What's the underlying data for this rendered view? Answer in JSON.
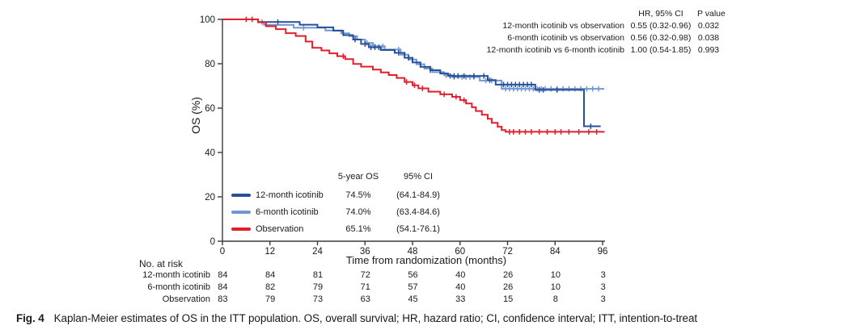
{
  "colors": {
    "dark_blue": "#27509b",
    "light_blue": "#7197d1",
    "red": "#e31e2d",
    "axis": "#3c3c3c",
    "text": "#1a1a1a"
  },
  "hr_table": {
    "col_headers": [
      "HR, 95% CI",
      "P value"
    ],
    "rows": [
      {
        "label": "12-month icotinib vs observation",
        "hr": "0.55 (0.32-0.96)",
        "p": "0.032"
      },
      {
        "label": "6-month icotinib vs observation",
        "hr": "0.56 (0.32-0.98)",
        "p": "0.038"
      },
      {
        "label": "12-month icotinib vs 6-month icotinib",
        "hr": "1.00 (0.54-1.85)",
        "p": "0.993"
      }
    ]
  },
  "legend_table": {
    "col_headers": [
      "5-year OS",
      "95% CI"
    ],
    "rows": [
      {
        "label": "12-month icotinib",
        "os": "74.5%",
        "ci": "(64.1-84.9)",
        "color": "#27509b"
      },
      {
        "label": "6-month icotinib",
        "os": "74.0%",
        "ci": "(63.4-84.6)",
        "color": "#7197d1"
      },
      {
        "label": "Observation",
        "os": "65.1%",
        "ci": "(54.1-76.1)",
        "color": "#e31e2d"
      }
    ]
  },
  "risk_table": {
    "title": "No. at risk",
    "rows": [
      {
        "label": "12-month icotinib",
        "counts": [
          84,
          84,
          81,
          72,
          56,
          40,
          26,
          10,
          3
        ]
      },
      {
        "label": "6-month icotinib",
        "counts": [
          84,
          82,
          79,
          71,
          57,
          40,
          26,
          10,
          3
        ]
      },
      {
        "label": "Observation",
        "counts": [
          83,
          79,
          73,
          63,
          45,
          33,
          15,
          8,
          3
        ]
      }
    ]
  },
  "caption": {
    "fig_label": "Fig. 4",
    "text": "Kaplan-Meier estimates of OS in the ITT population. OS, overall survival; HR, hazard ratio; CI, confidence interval; ITT, intention-to-treat"
  },
  "chart_data": {
    "type": "line",
    "subtype": "kaplan-meier-step",
    "title": "",
    "xlabel": "Time from randomization (months)",
    "ylabel": "OS (%)",
    "xlim": [
      0,
      96
    ],
    "ylim": [
      0,
      100
    ],
    "xticks": [
      0,
      12,
      24,
      36,
      48,
      60,
      72,
      84,
      96
    ],
    "yticks": [
      0,
      20,
      40,
      60,
      80,
      100
    ],
    "grid": false,
    "legend_position": "inside-lower-left",
    "series": [
      {
        "id": "12-month-icotinib",
        "name": "12-month icotinib",
        "color": "#27509b",
        "five_year_os_pct": 74.5,
        "points": [
          [
            0,
            100
          ],
          [
            9,
            100
          ],
          [
            9,
            98.8
          ],
          [
            19.5,
            98.8
          ],
          [
            19.5,
            97.6
          ],
          [
            24,
            97.6
          ],
          [
            24,
            96.4
          ],
          [
            28,
            96.4
          ],
          [
            28,
            94.9
          ],
          [
            30.5,
            94.9
          ],
          [
            30.5,
            92.9
          ],
          [
            33,
            92.9
          ],
          [
            33,
            90.9
          ],
          [
            35,
            90.9
          ],
          [
            35,
            88.9
          ],
          [
            37,
            88.9
          ],
          [
            37,
            87.4
          ],
          [
            40,
            87.4
          ],
          [
            40,
            86.2
          ],
          [
            43.5,
            86.2
          ],
          [
            43.5,
            84.9
          ],
          [
            46,
            84.9
          ],
          [
            46,
            82.7
          ],
          [
            48,
            82.7
          ],
          [
            48,
            80.6
          ],
          [
            50,
            80.6
          ],
          [
            50,
            78.6
          ],
          [
            52.5,
            78.6
          ],
          [
            52.5,
            77.1
          ],
          [
            55,
            77.1
          ],
          [
            55,
            75.6
          ],
          [
            57,
            75.6
          ],
          [
            57,
            74.5
          ],
          [
            67,
            74.5
          ],
          [
            67,
            72.6
          ],
          [
            69,
            72.6
          ],
          [
            69,
            70.6
          ],
          [
            79,
            70.6
          ],
          [
            79,
            68.2
          ],
          [
            91.3,
            68.2
          ],
          [
            91.3,
            51.8
          ],
          [
            95.5,
            51.8
          ]
        ],
        "censors": [
          14,
          33.5,
          36,
          37.5,
          38.5,
          39.5,
          44.5,
          47,
          52.5,
          57.5,
          58.5,
          59.5,
          61,
          63.5,
          66,
          67.5,
          71,
          72,
          73,
          74,
          75,
          76,
          77,
          78,
          80,
          81,
          84.5,
          93
        ]
      },
      {
        "id": "6-month-icotinib",
        "name": "6-month icotinib",
        "color": "#7197d1",
        "five_year_os_pct": 74.0,
        "points": [
          [
            0,
            100
          ],
          [
            9,
            100
          ],
          [
            9,
            98.8
          ],
          [
            10.5,
            98.8
          ],
          [
            10.5,
            97.5
          ],
          [
            18,
            97.5
          ],
          [
            18,
            96.2
          ],
          [
            26,
            96.2
          ],
          [
            26,
            95
          ],
          [
            30,
            95
          ],
          [
            30,
            93.7
          ],
          [
            32,
            93.7
          ],
          [
            32,
            92.4
          ],
          [
            34,
            92.4
          ],
          [
            34,
            90.9
          ],
          [
            36,
            90.9
          ],
          [
            36,
            89.4
          ],
          [
            38,
            89.4
          ],
          [
            38,
            87.9
          ],
          [
            41,
            87.9
          ],
          [
            41,
            86.4
          ],
          [
            45,
            86.4
          ],
          [
            45,
            84.1
          ],
          [
            47,
            84.1
          ],
          [
            47,
            81.9
          ],
          [
            49,
            81.9
          ],
          [
            49,
            79.8
          ],
          [
            51,
            79.8
          ],
          [
            51,
            77.8
          ],
          [
            53,
            77.8
          ],
          [
            53,
            76.2
          ],
          [
            56,
            76.2
          ],
          [
            56,
            74.8
          ],
          [
            58,
            74.8
          ],
          [
            58,
            74
          ],
          [
            65,
            74
          ],
          [
            65,
            72.4
          ],
          [
            70.5,
            72.4
          ],
          [
            70.5,
            68.7
          ],
          [
            96.4,
            68.7
          ]
        ],
        "censors": [
          10,
          20.5,
          30.5,
          36.5,
          38.5,
          40.5,
          44.5,
          46,
          52.5,
          56.5,
          58.5,
          60.5,
          61.5,
          62.5,
          63.5,
          66.5,
          68,
          71.5,
          72.5,
          73.5,
          74.5,
          75.5,
          76.5,
          77.5,
          78.5,
          79.5,
          80.5,
          81.5,
          83,
          84.5,
          86,
          87.5,
          89,
          90.5,
          92,
          93.5,
          95
        ]
      },
      {
        "id": "observation",
        "name": "Observation",
        "color": "#e31e2d",
        "five_year_os_pct": 65.1,
        "points": [
          [
            0,
            100
          ],
          [
            9,
            100
          ],
          [
            9,
            98.7
          ],
          [
            11,
            98.7
          ],
          [
            11,
            96.9
          ],
          [
            13.5,
            96.9
          ],
          [
            13.5,
            95.6
          ],
          [
            16,
            95.6
          ],
          [
            16,
            93.8
          ],
          [
            18.5,
            93.8
          ],
          [
            18.5,
            92.5
          ],
          [
            21,
            92.5
          ],
          [
            21,
            90
          ],
          [
            22.7,
            90
          ],
          [
            22.7,
            87.2
          ],
          [
            25,
            87.2
          ],
          [
            25,
            86
          ],
          [
            27,
            86
          ],
          [
            27,
            84.7
          ],
          [
            29,
            84.7
          ],
          [
            29,
            83.4
          ],
          [
            31,
            83.4
          ],
          [
            31,
            82.1
          ],
          [
            33,
            82.1
          ],
          [
            33,
            79.9
          ],
          [
            35,
            79.9
          ],
          [
            35,
            78.7
          ],
          [
            38,
            78.7
          ],
          [
            38,
            77.4
          ],
          [
            40,
            77.4
          ],
          [
            40,
            76.1
          ],
          [
            42,
            76.1
          ],
          [
            42,
            74.9
          ],
          [
            44,
            74.9
          ],
          [
            44,
            73.6
          ],
          [
            46,
            73.6
          ],
          [
            46,
            71.8
          ],
          [
            48,
            71.8
          ],
          [
            48,
            70.3
          ],
          [
            49.5,
            70.3
          ],
          [
            49.5,
            68.9
          ],
          [
            52,
            68.9
          ],
          [
            52,
            67.4
          ],
          [
            55,
            67.4
          ],
          [
            55,
            66.2
          ],
          [
            58,
            66.2
          ],
          [
            58,
            65.1
          ],
          [
            60,
            65.1
          ],
          [
            60,
            63.6
          ],
          [
            61.5,
            63.6
          ],
          [
            61.5,
            62.1
          ],
          [
            63,
            62.1
          ],
          [
            63,
            60.4
          ],
          [
            64,
            60.4
          ],
          [
            64,
            58.7
          ],
          [
            65.5,
            58.7
          ],
          [
            65.5,
            57
          ],
          [
            67,
            57
          ],
          [
            67,
            55.2
          ],
          [
            68,
            55.2
          ],
          [
            68,
            53.4
          ],
          [
            69.5,
            53.4
          ],
          [
            69.5,
            51.6
          ],
          [
            70.5,
            51.6
          ],
          [
            70.5,
            50.1
          ],
          [
            71.5,
            50.1
          ],
          [
            71.5,
            49.3
          ],
          [
            96.5,
            49.3
          ]
        ],
        "censors": [
          6,
          7.5,
          30.5,
          46.5,
          48.5,
          50.5,
          56,
          59,
          61,
          72.5,
          73.5,
          75,
          76.5,
          78,
          80,
          82,
          84,
          85.5,
          87.5,
          90,
          92.5,
          94.5
        ]
      }
    ]
  }
}
